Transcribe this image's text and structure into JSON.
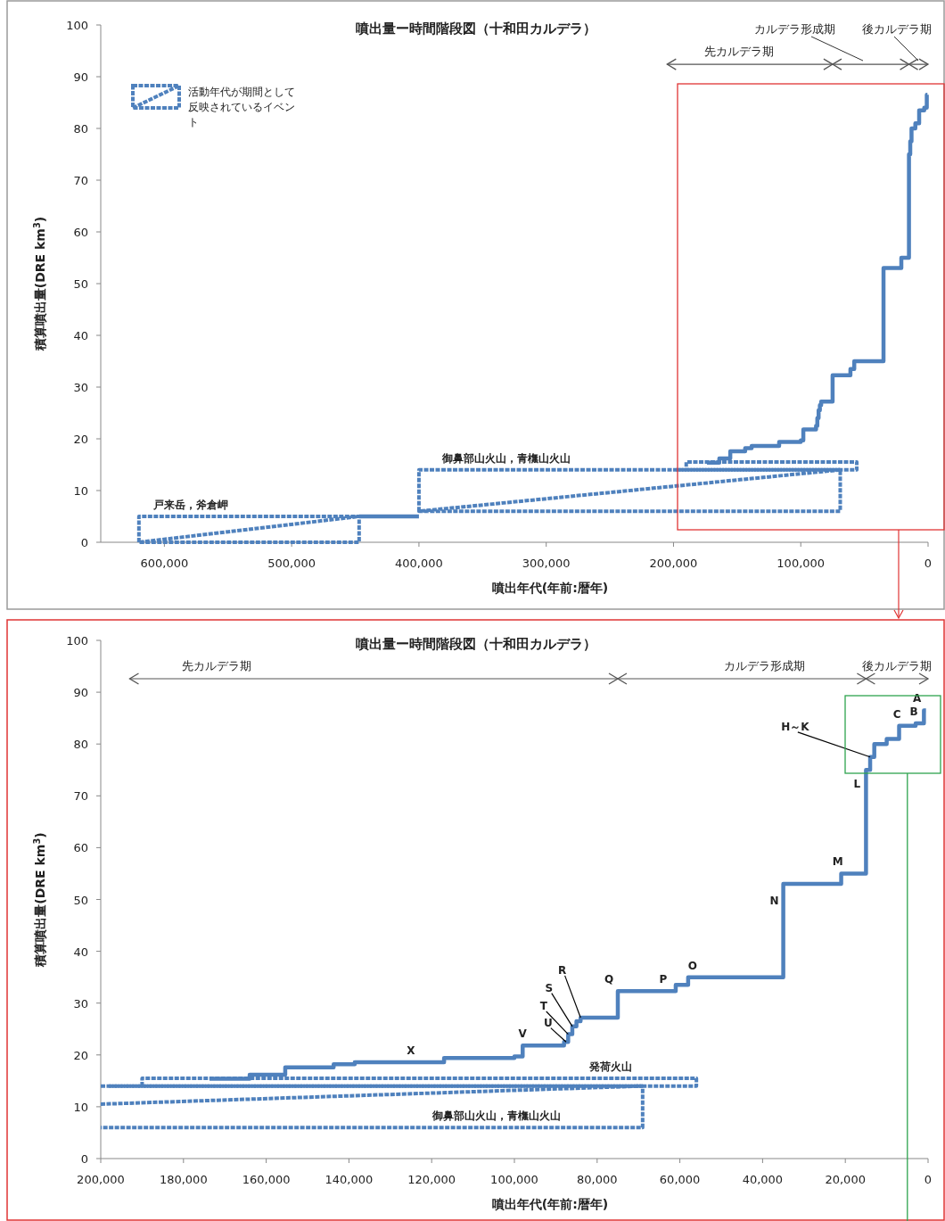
{
  "chart_data": [
    {
      "type": "step",
      "title": "噴出量ー時間階段図（十和田カルデラ）",
      "xlabel": "噴出年代(年前:暦年)",
      "ylabel": "積算噴出量(DRE km$^{3}$)",
      "xlim": [
        650000,
        0
      ],
      "xticks": [
        {
          "value": 600000,
          "label": "600,000"
        },
        {
          "value": 500000,
          "label": "500,000"
        },
        {
          "value": 400000,
          "label": "400,000"
        },
        {
          "value": 300000,
          "label": "300,000"
        },
        {
          "value": 200000,
          "label": "200,000"
        },
        {
          "value": 100000,
          "label": "100,000"
        },
        0
      ],
      "ylim": [
        0,
        100
      ],
      "yticks": [
        0,
        10,
        20,
        30,
        40,
        50,
        60,
        70,
        80,
        90,
        100
      ],
      "legend": "top left",
      "marker": "none",
      "series": [
        {
          "type": "line",
          "name": "活動年代が期間として反映されているイベント",
          "color": "#4f81bd",
          "line_style": "dashed",
          "x": [
            620000,
            620000,
            447000,
            447000,
            620000,
            447000
          ],
          "values": [
            0,
            5,
            5,
            0,
            0,
            5
          ]
        },
        {
          "type": "line",
          "color": "#4f81bd",
          "line_style": "dashed",
          "x": [
            400000,
            400000,
            69000,
            69000,
            400000,
            69000
          ],
          "values": [
            6,
            14,
            14,
            6,
            6,
            14
          ]
        },
        {
          "type": "line",
          "color": "#4f81bd",
          "line_style": "dashed",
          "x": [
            198000,
            56000,
            56000,
            190000,
            190000
          ],
          "values": [
            14,
            14,
            15.5,
            15.5,
            14
          ]
        },
        {
          "type": "step",
          "color": "#4f81bd",
          "line_style": "solid",
          "x": [
            447000,
            400000,
            300000,
            173700,
            164000,
            155400,
            143700,
            138600,
            117000,
            100000,
            98000,
            88000,
            87000,
            86000,
            85000,
            84000,
            75000,
            61000,
            58000,
            35000,
            21000,
            15000,
            14000,
            13000,
            10000,
            7000,
            3000,
            1000,
            500
          ],
          "values": [
            5,
            5,
            null,
            15.4,
            16.2,
            17.6,
            18.2,
            18.6,
            19.4,
            19.7,
            21.8,
            22.5,
            24,
            25.5,
            26.5,
            27.2,
            32.3,
            33.5,
            35,
            53,
            55,
            75,
            77.5,
            80,
            81,
            83.5,
            84,
            86.5,
            86.5
          ]
        },
        {
          "type": "line",
          "color": "#555555",
          "line_style": "solid",
          "x": [
            205000,
            75000,
            15000,
            0
          ],
          "values": [
            92.4,
            92.4,
            92.4,
            92.4
          ]
        }
      ],
      "annotations": [
        "先カルデラ期",
        "カルデラ形成期",
        "後カルデラ期",
        {
          "text": "戸来岳，斧倉岬",
          "x": 572000,
          "y": 5
        },
        {
          "text": "御鼻部山火山，青橅山火山",
          "x": 324000,
          "y": 14
        }
      ]
    },
    {
      "type": "step",
      "title": "噴出量ー時間階段図（十和田カルデラ）",
      "xlabel": "噴出年代(年前:暦年)",
      "ylabel": "積算噴出量(DRE km$^{3}$)",
      "xlim": [
        200000,
        0
      ],
      "xticks": [
        {
          "value": 200000,
          "label": "200,000"
        },
        {
          "value": 180000,
          "label": "180,000"
        },
        {
          "value": 160000,
          "label": "160,000"
        },
        {
          "value": 140000,
          "label": "140,000"
        },
        {
          "value": 120000,
          "label": "120,000"
        },
        {
          "value": 100000,
          "label": "100,000"
        },
        {
          "value": 80000,
          "label": "80,000"
        },
        {
          "value": 60000,
          "label": "60,000"
        },
        {
          "value": 40000,
          "label": "40,000"
        },
        {
          "value": 20000,
          "label": "20,000"
        },
        0
      ],
      "ylim": [
        0,
        100
      ],
      "yticks": [
        0,
        10,
        20,
        30,
        40,
        50,
        60,
        70,
        80,
        90,
        100
      ],
      "marker": "none",
      "series": [
        {
          "type": "line",
          "color": "#4f81bd",
          "line_style": "dashed",
          "x": [
            200000,
            69000,
            69000,
            200000
          ],
          "values": [
            14,
            14,
            6,
            6
          ]
        },
        {
          "type": "line",
          "color": "#4f81bd",
          "line_style": "dashed",
          "x": [
            200000,
            69000
          ],
          "values": [
            10.5,
            14
          ]
        },
        {
          "type": "line",
          "color": "#4f81bd",
          "line_style": "dashed",
          "x": [
            198000,
            56000,
            56000,
            190000,
            190000
          ],
          "values": [
            14,
            14,
            15.5,
            15.5,
            14
          ]
        },
        {
          "type": "step",
          "color": "#4f81bd",
          "line_style": "solid",
          "x": [
            173700,
            164000,
            155400,
            143700,
            138600,
            117000,
            100000,
            98000,
            88000,
            87000,
            86000,
            85000,
            84000,
            75000,
            61000,
            58000,
            35000,
            21000,
            15000,
            14000,
            13000,
            10000,
            7000,
            3000,
            1000,
            500
          ],
          "values": [
            15.4,
            16.2,
            17.6,
            18.2,
            18.6,
            19.4,
            19.7,
            21.8,
            22.5,
            24,
            25.5,
            26.5,
            27.2,
            32.3,
            33.5,
            35,
            53,
            55,
            75,
            77.5,
            80,
            81,
            83.5,
            84,
            86.5,
            86.5
          ]
        },
        {
          "type": "line",
          "color": "#000000",
          "line_style": "solid",
          "x": [
            91200,
            87500
          ],
          "values": [
            25.2,
            22.5
          ]
        },
        {
          "type": "line",
          "color": "#000000",
          "line_style": "solid",
          "x": [
            92300,
            87000
          ],
          "values": [
            28.4,
            24
          ]
        },
        {
          "type": "line",
          "color": "#000000",
          "line_style": "solid",
          "x": [
            91000,
            86000
          ],
          "values": [
            31.9,
            25.5
          ]
        },
        {
          "type": "line",
          "color": "#000000",
          "line_style": "solid",
          "x": [
            87800,
            84000
          ],
          "values": [
            35.3,
            27.2
          ]
        },
        {
          "type": "line",
          "color": "#000000",
          "line_style": "solid",
          "x": [
            31500,
            14000
          ],
          "values": [
            82.3,
            77.5
          ]
        },
        {
          "type": "line",
          "color": "#555555",
          "line_style": "solid",
          "x": [
            193000,
            75000,
            15000,
            0
          ],
          "values": [
            92.6,
            92.6,
            92.6,
            92.6
          ]
        }
      ],
      "ref_lines": [
        {
          "axis": "x",
          "value": 5000,
          "color": "#2ea44f"
        }
      ],
      "annotations": [
        "先カルデラ期",
        "カルデラ形成期",
        "後カルデラ期",
        {
          "text": "X",
          "x": 122850,
          "y": 18.6
        },
        {
          "text": "V",
          "x": 95850,
          "y": 21.8
        },
        {
          "text": "U",
          "x": 91200,
          "y": 25.2
        },
        {
          "text": "T",
          "x": 92300,
          "y": 28.4
        },
        {
          "text": "S",
          "x": 91000,
          "y": 31.9
        },
        {
          "text": "R",
          "x": 87800,
          "y": 35.3
        },
        {
          "text": "Q",
          "x": 75000,
          "y": 32.3
        },
        {
          "text": "P",
          "x": 61850,
          "y": 32.3
        },
        {
          "text": "O",
          "x": 54750,
          "y": 35
        },
        {
          "text": "N",
          "x": 35000,
          "y": 47.5
        },
        {
          "text": "M",
          "x": 19650,
          "y": 55
        },
        {
          "text": "L",
          "x": 15000,
          "y": 70
        },
        {
          "text": "H～K",
          "x": 31500,
          "y": 82.3
        },
        {
          "text": "C",
          "x": 5350,
          "y": 83.5
        },
        {
          "text": "B",
          "x": 1250,
          "y": 84
        },
        {
          "text": "A",
          "x": 500,
          "y": 86.5
        },
        {
          "text": "発荷火山",
          "x": 74550,
          "y": 15.5
        },
        {
          "text": "御鼻部山火山，青橅山火山",
          "x": 102150,
          "y": 6
        }
      ]
    }
  ]
}
